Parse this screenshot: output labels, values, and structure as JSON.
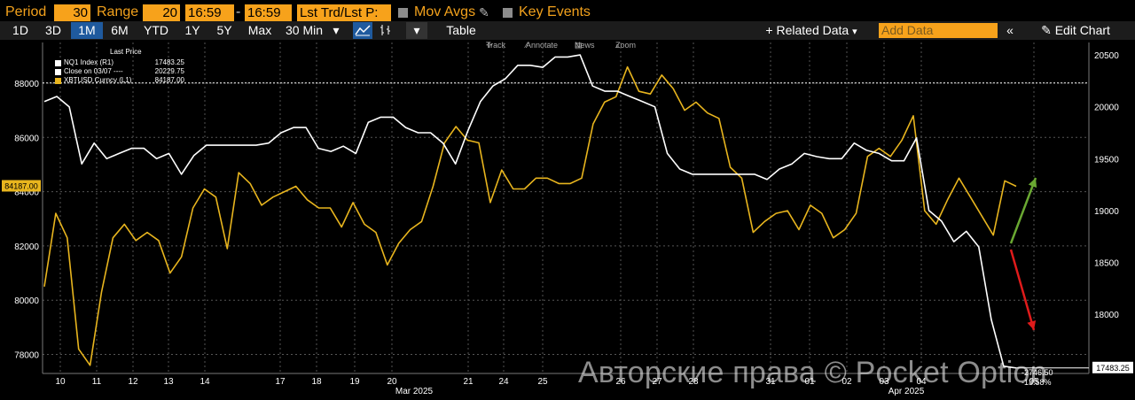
{
  "toolbar": {
    "period_label": "Period",
    "period_value": "30",
    "range_label": "Range",
    "range_value": "20",
    "time_start": "16:59",
    "time_sep": "-",
    "time_end": "16:59",
    "mode": "Lst Trd/Lst P:",
    "mov_avgs": "Mov Avgs",
    "key_events": "Key Events"
  },
  "ranges": [
    "1D",
    "3D",
    "1M",
    "6M",
    "YTD",
    "1Y",
    "5Y",
    "Max"
  ],
  "selected_range": "1M",
  "interval": "30 Min",
  "table_label": "Table",
  "related_data": "Related Data",
  "add_data_placeholder": "Add Data",
  "edit_chart": "Edit Chart",
  "chart_tools": [
    "Track",
    "Annotate",
    "News",
    "Zoom"
  ],
  "legend": {
    "header": "Last Price",
    "rows": [
      {
        "name": "NQ1 Index  (R1)",
        "value": "17483.25",
        "color": "#ffffff"
      },
      {
        "name": "Close on 03/07 ----",
        "value": "20229.75",
        "color": "#ffffff"
      },
      {
        "name": "XBTUSD Curncy  (L1)",
        "value": "84187.00",
        "color": "#e8b51e"
      }
    ]
  },
  "annotations": {
    "change_points": "-2746.50",
    "change_pct": "-13.58%"
  },
  "watermark": "Авторские права © Pocket Option",
  "colors": {
    "bitcoin": "#e8b51e",
    "nasdaq": "#ffffff",
    "accent": "#f7a21b",
    "up_arrow": "#6aa832",
    "down_arrow": "#e01b1b"
  },
  "chart_data": {
    "type": "line",
    "left_axis": {
      "ticks": [
        78000,
        80000,
        82000,
        84000,
        86000,
        88000
      ],
      "ylim": [
        77300,
        89500
      ],
      "last_label": "84187.00"
    },
    "right_axis": {
      "ticks": [
        18000,
        18500,
        19000,
        19500,
        20000,
        20500
      ],
      "ylim": [
        17430,
        20620
      ],
      "last_label": "17483.25",
      "reference_line": 20229.75
    },
    "x_ticks": [
      "10",
      "11",
      "12",
      "13",
      "14",
      "17",
      "18",
      "19",
      "20",
      "21",
      "24",
      "25",
      "26",
      "27",
      "28",
      "31",
      "01",
      "02",
      "03",
      "04",
      "05"
    ],
    "x_month_labels": [
      {
        "at": "20",
        "label": "Mar 2025"
      },
      {
        "at": "03",
        "label": "Apr 2025"
      }
    ],
    "series": [
      {
        "name": "XBTUSD Curncy",
        "axis": "left",
        "color": "#e8b51e",
        "values": [
          80500,
          83200,
          82300,
          78200,
          77600,
          80300,
          82300,
          82800,
          82200,
          82500,
          82200,
          81000,
          81600,
          83400,
          84100,
          83800,
          81900,
          84700,
          84300,
          83500,
          83800,
          84000,
          84200,
          83700,
          83400,
          83400,
          82700,
          83600,
          82800,
          82500,
          81300,
          82100,
          82600,
          82900,
          84200,
          85800,
          86400,
          85900,
          85800,
          83600,
          84800,
          84100,
          84100,
          84500,
          84500,
          84300,
          84300,
          84500,
          86500,
          87300,
          87500,
          88600,
          87700,
          87600,
          88300,
          87800,
          87000,
          87300,
          86900,
          86700,
          84900,
          84500,
          82500,
          82900,
          83200,
          83300,
          82600,
          83500,
          83200,
          82300,
          82600,
          83200,
          85300,
          85600,
          85300,
          85900,
          86800,
          83300,
          82800,
          83700,
          84500,
          83800,
          83100,
          82400,
          84400,
          84200
        ]
      },
      {
        "name": "NQ1 Index",
        "axis": "right",
        "color": "#ffffff",
        "values": [
          20050,
          20100,
          20000,
          19450,
          19650,
          19500,
          19550,
          19600,
          19600,
          19500,
          19550,
          19350,
          19530,
          19630,
          19630,
          19630,
          19630,
          19630,
          19650,
          19750,
          19800,
          19800,
          19600,
          19570,
          19620,
          19550,
          19850,
          19900,
          19900,
          19800,
          19750,
          19750,
          19650,
          19450,
          19770,
          20050,
          20200,
          20270,
          20400,
          20400,
          20380,
          20480,
          20480,
          20500,
          20200,
          20150,
          20150,
          20100,
          20050,
          20000,
          19550,
          19400,
          19350,
          19350,
          19350,
          19350,
          19350,
          19350,
          19300,
          19400,
          19450,
          19550,
          19520,
          19500,
          19500,
          19650,
          19580,
          19550,
          19480,
          19480,
          19700,
          19000,
          18900,
          18700,
          18800,
          18650,
          17950,
          17500,
          17483
        ]
      }
    ]
  }
}
